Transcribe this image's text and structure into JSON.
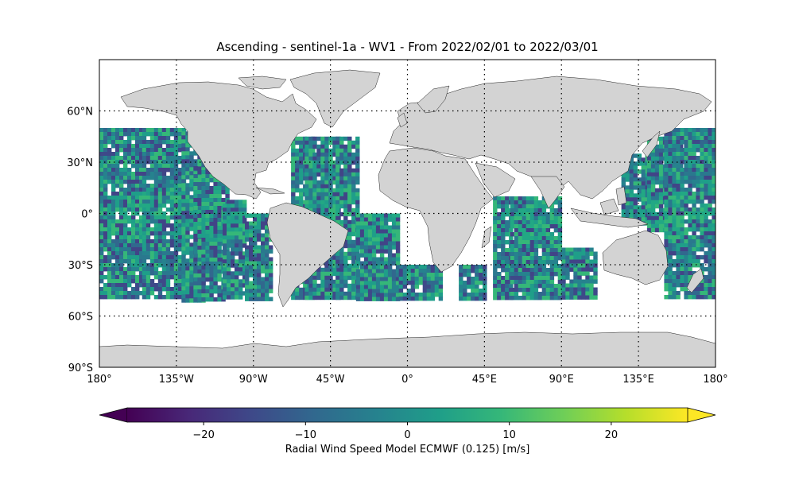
{
  "title": "Ascending - sentinel-1a - WV1 - From 2022/02/01 to 2022/03/01",
  "map": {
    "projection": "PlateCarree",
    "lon_range": [
      -180,
      180
    ],
    "lat_range": [
      -90,
      90
    ],
    "x_ticks": [
      {
        "value": -180,
        "label": "180°"
      },
      {
        "value": -135,
        "label": "135°W"
      },
      {
        "value": -90,
        "label": "90°W"
      },
      {
        "value": -45,
        "label": "45°W"
      },
      {
        "value": 0,
        "label": "0°"
      },
      {
        "value": 45,
        "label": "45°E"
      },
      {
        "value": 90,
        "label": "90°E"
      },
      {
        "value": 135,
        "label": "135°E"
      },
      {
        "value": 180,
        "label": "180°"
      }
    ],
    "y_ticks": [
      {
        "value": 60,
        "label": "60°N"
      },
      {
        "value": 30,
        "label": "30°N"
      },
      {
        "value": 0,
        "label": "0°"
      },
      {
        "value": -30,
        "label": "30°S"
      },
      {
        "value": -60,
        "label": "60°S"
      },
      {
        "value": -90,
        "label": "90°S"
      }
    ],
    "gridlines": "dotted",
    "land_color": "#d3d3d3",
    "data_lat_range": [
      -50,
      50
    ],
    "swath_bands": [
      {
        "lon": [
          -180,
          -155
        ],
        "lat": [
          -50,
          50
        ]
      },
      {
        "lon": [
          -155,
          -130
        ],
        "lat": [
          -50,
          50
        ]
      },
      {
        "lon": [
          -132,
          -120
        ],
        "lat": [
          -50,
          48
        ]
      },
      {
        "lon": [
          -125,
          -105
        ],
        "lat": [
          -50,
          30
        ]
      },
      {
        "lon": [
          -108,
          -95
        ],
        "lat": [
          -50,
          8
        ]
      },
      {
        "lon": [
          -95,
          -80
        ],
        "lat": [
          -50,
          0
        ]
      },
      {
        "lon": [
          -68,
          -55
        ],
        "lat": [
          -50,
          45
        ]
      },
      {
        "lon": [
          -60,
          -40
        ],
        "lat": [
          -50,
          45
        ]
      },
      {
        "lon": [
          -42,
          -30
        ],
        "lat": [
          -50,
          45
        ]
      },
      {
        "lon": [
          -30,
          -5
        ],
        "lat": [
          -50,
          0
        ]
      },
      {
        "lon": [
          -5,
          20
        ],
        "lat": [
          -50,
          -30
        ]
      },
      {
        "lon": [
          30,
          45
        ],
        "lat": [
          -50,
          -30
        ]
      },
      {
        "lon": [
          50,
          60
        ],
        "lat": [
          -50,
          10
        ]
      },
      {
        "lon": [
          60,
          90
        ],
        "lat": [
          -50,
          10
        ]
      },
      {
        "lon": [
          90,
          110
        ],
        "lat": [
          -50,
          -20
        ]
      },
      {
        "lon": [
          125,
          140
        ],
        "lat": [
          -5,
          35
        ]
      },
      {
        "lon": [
          140,
          160
        ],
        "lat": [
          -10,
          45
        ]
      },
      {
        "lon": [
          150,
          180
        ],
        "lat": [
          -50,
          50
        ]
      }
    ]
  },
  "colorbar": {
    "label": "Radial Wind Speed Model ECMWF (0.125) [m/s]",
    "colormap": "viridis",
    "vmin": -27.5,
    "vmax": 27.5,
    "extend": "both",
    "ticks": [
      {
        "value": -20,
        "label": "−20"
      },
      {
        "value": -10,
        "label": "−10"
      },
      {
        "value": 0,
        "label": "0"
      },
      {
        "value": 10,
        "label": "10"
      },
      {
        "value": 20,
        "label": "20"
      }
    ],
    "colors": [
      "#440154",
      "#482878",
      "#3e4989",
      "#31688e",
      "#26828e",
      "#1f9e89",
      "#35b779",
      "#6ece58",
      "#b5de2b",
      "#fde725"
    ]
  }
}
